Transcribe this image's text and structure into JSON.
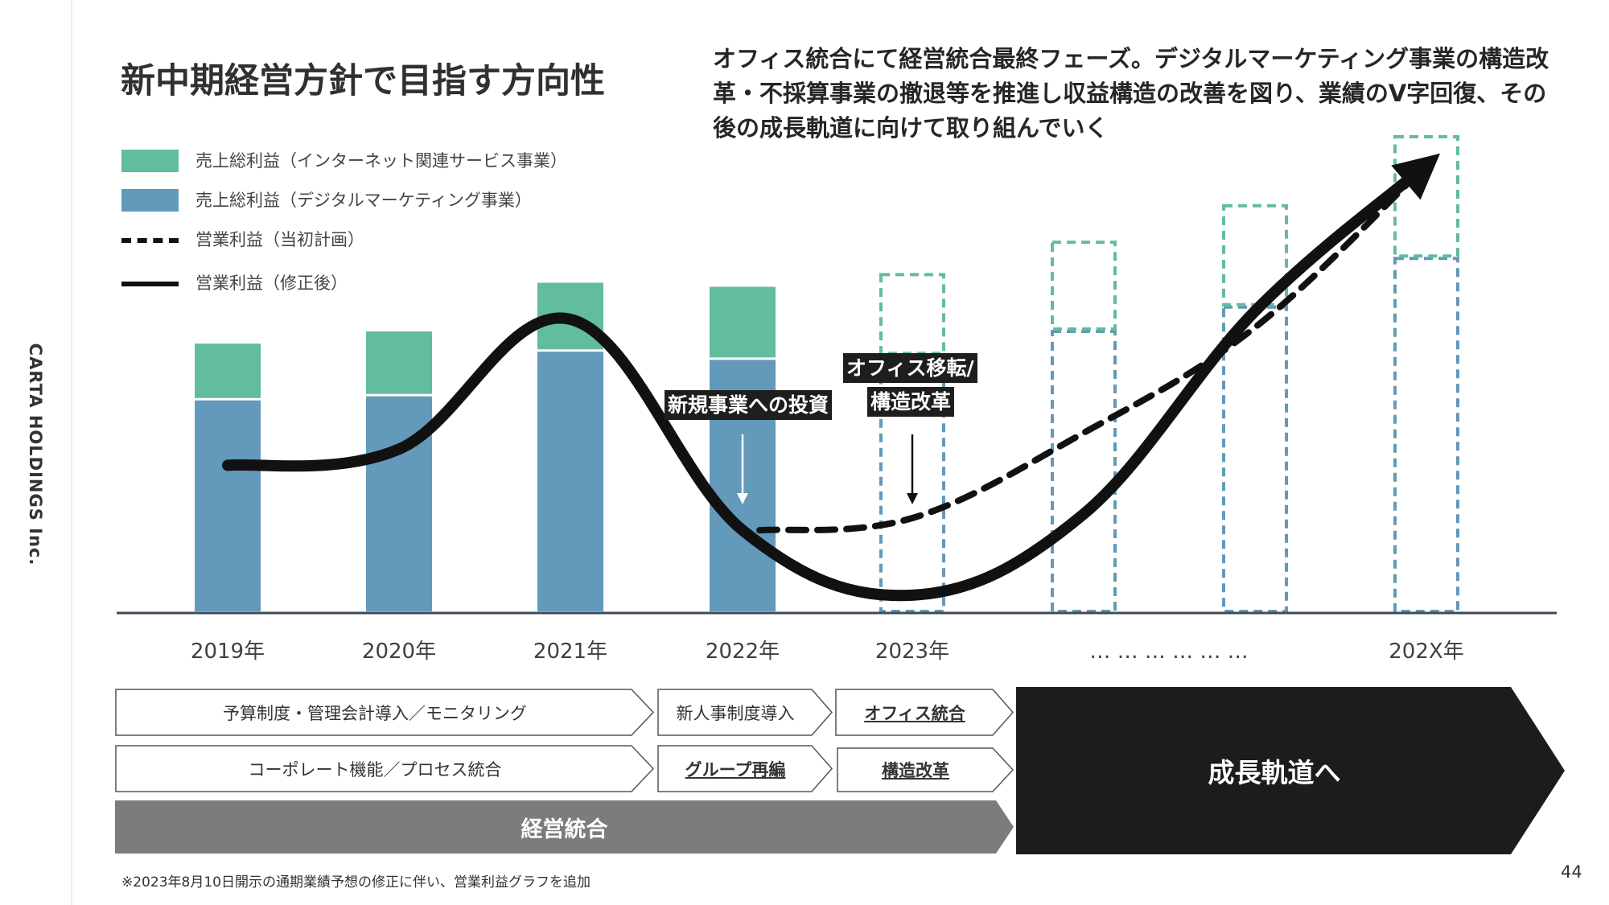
{
  "brand": "CARTA HOLDINGS Inc.",
  "title": "新中期経営方針で目指す方向性",
  "headline": "オフィス統合にて経営統合最終フェーズ。デジタルマーケティング事業の構造改革・不採算事業の撤退等を推進し収益構造の改善を図り、業績のV字回復、その後の成長軌道に向けて取り組んでいく",
  "legend": [
    {
      "label": "売上総利益（インターネット関連サービス事業）",
      "kind": "box",
      "color": "#62bc9f"
    },
    {
      "label": "売上総利益（デジタルマーケティング事業）",
      "kind": "box",
      "color": "#6399ba"
    },
    {
      "label": "営業利益（当初計画）",
      "kind": "dash",
      "color": "#111111"
    },
    {
      "label": "営業利益（修正後）",
      "kind": "solid",
      "color": "#111111"
    }
  ],
  "chart_data": {
    "type": "bar",
    "categories": [
      "2019年",
      "2020年",
      "2021年",
      "2022年",
      "2023年",
      "… … … … … …",
      "",
      "202X年"
    ],
    "series": [
      {
        "name": "売上総利益（デジタルマーケティング事業）",
        "values": [
          26,
          26.5,
          32,
          31,
          31.5,
          34.5,
          37.5,
          43.5
        ],
        "color": "#6399ba"
      },
      {
        "name": "売上総利益（インターネット関連サービス事業）",
        "values": [
          7,
          8,
          8.5,
          9,
          10,
          11,
          12.5,
          15
        ],
        "color": "#62bc9f"
      }
    ],
    "projected_from_index": 4,
    "lines": [
      {
        "name": "営業利益（修正後）",
        "style": "solid",
        "color": "#111111",
        "x": [
          0,
          1,
          2,
          3,
          4,
          5,
          6,
          7
        ],
        "y": [
          18,
          20,
          36,
          10,
          2,
          12,
          37,
          55
        ]
      },
      {
        "name": "営業利益（当初計画）",
        "style": "dashed",
        "color": "#111111",
        "x": [
          3.1,
          4,
          5,
          6,
          7
        ],
        "y": [
          10,
          11.5,
          22,
          35,
          55
        ]
      }
    ],
    "ylim": [
      0,
      58
    ],
    "gridlines": false,
    "legend_position": "top-left"
  },
  "callouts": [
    {
      "text": "新規事業への投資"
    },
    {
      "text": "オフィス移転/"
    },
    {
      "text": "構造改革"
    }
  ],
  "timeline": {
    "row1": [
      "予算制度・管理会計導入／モニタリング",
      "新人事制度導入",
      "オフィス統合"
    ],
    "row2": [
      "コーポレート機能／プロセス統合",
      "グループ再編",
      "構造改革"
    ],
    "base": "経営統合",
    "final": "成長軌道へ"
  },
  "footnote": "※2023年8月10日開示の通期業績予想の修正に伴い、営業利益グラフを追加",
  "page_number": "44"
}
